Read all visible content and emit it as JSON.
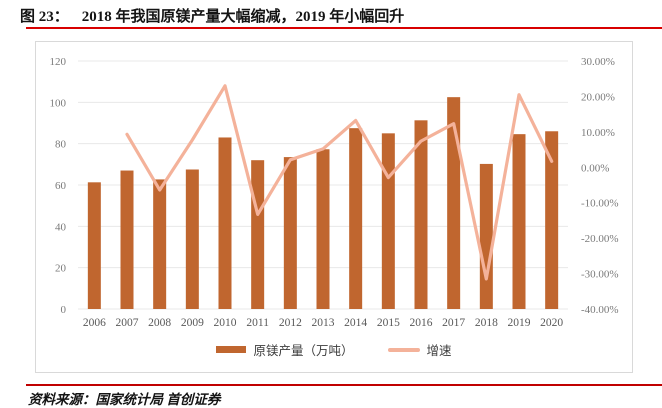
{
  "header": {
    "figure_label": "图 23：",
    "title": "2018 年我国原镁产量大幅缩减，2019 年小幅回升"
  },
  "legend": {
    "bar_label": "原镁产量（万吨）",
    "line_label": "增速"
  },
  "footer": {
    "source": "资料来源：国家统计局 首创证券"
  },
  "colors": {
    "bar": "#C0662F",
    "line": "#F4B29A",
    "gridline": "#E8E8E8",
    "axis_tick_text": "#7A7A7A",
    "year_text": "#595959",
    "title_rule": "#D80000",
    "footer_rule": "#C00000",
    "box_border": "#D9D9D9",
    "title_text": "#141414"
  },
  "chart_data": {
    "type": "bar",
    "subtype": "combo-bar-line-dual-axis",
    "categories": [
      "2006",
      "2007",
      "2008",
      "2009",
      "2010",
      "2011",
      "2012",
      "2013",
      "2014",
      "2015",
      "2016",
      "2017",
      "2018",
      "2019",
      "2020"
    ],
    "series": [
      {
        "name": "原镁产量（万吨）",
        "type": "bar",
        "axis": "left",
        "values": [
          61.3,
          67.0,
          62.7,
          67.5,
          83.0,
          72.0,
          73.5,
          77.3,
          87.5,
          85.0,
          91.3,
          102.5,
          70.2,
          84.6,
          86.0
        ]
      },
      {
        "name": "增速",
        "type": "line",
        "axis": "right",
        "values": [
          null,
          9.3,
          -6.4,
          7.7,
          23.0,
          -13.3,
          2.1,
          5.2,
          13.2,
          -2.9,
          7.4,
          12.3,
          -31.5,
          20.5,
          1.7
        ]
      }
    ],
    "left_axis": {
      "range": [
        0,
        120
      ],
      "ticks": [
        0,
        20,
        40,
        60,
        80,
        100,
        120
      ],
      "tick_labels": [
        "0",
        "20",
        "40",
        "60",
        "80",
        "100",
        "120"
      ]
    },
    "right_axis": {
      "range": [
        -40,
        30
      ],
      "ticks": [
        30,
        20,
        10,
        0,
        -10,
        -20,
        -30,
        -40
      ],
      "tick_labels": [
        "30.00%",
        "20.00%",
        "10.00%",
        "0.00%",
        "-10.00%",
        "-20.00%",
        "-30.00%",
        "-40.00%"
      ]
    },
    "grid": true,
    "legend_position": "bottom"
  }
}
